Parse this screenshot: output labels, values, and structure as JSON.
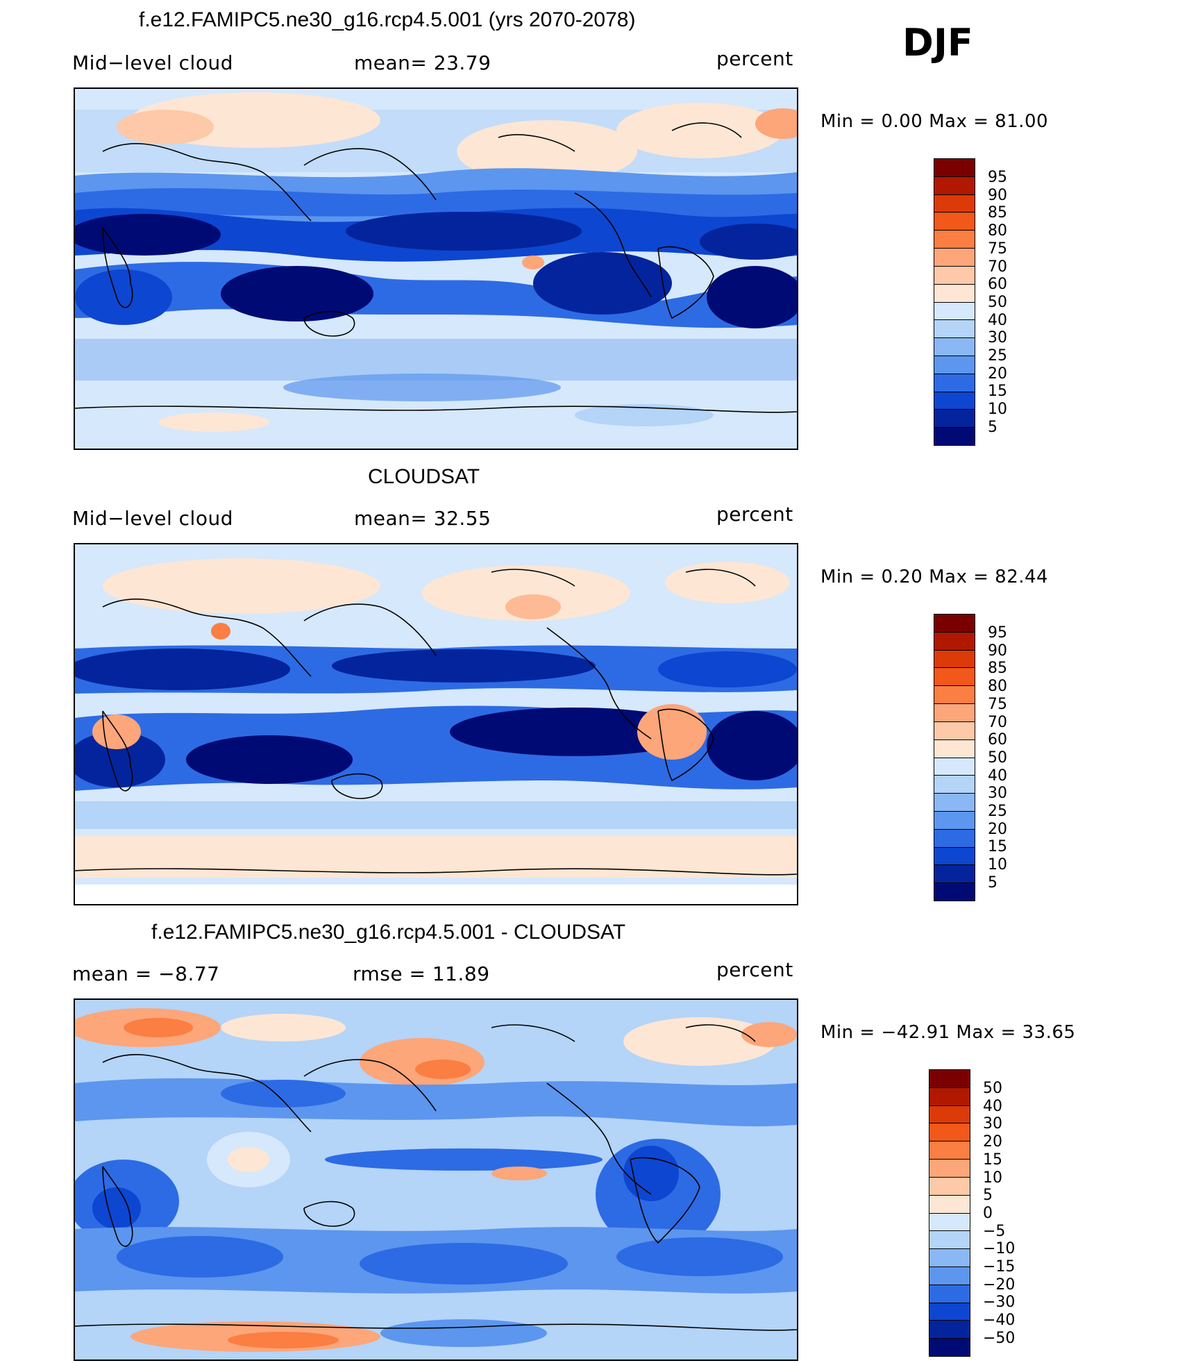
{
  "season": "DJF",
  "panels": [
    {
      "title": "f.e12.FAMIPC5.ne30_g16.rcp4.5.001 (yrs 2070-2078)",
      "left_label": "Mid−level cloud",
      "center_label": "mean=   23.79",
      "right_label": "percent",
      "minmax": "Min  =     0.00  Max  =    81.00",
      "colorbar_labels": [
        "95",
        "90",
        "85",
        "80",
        "75",
        "70",
        "60",
        "50",
        "40",
        "30",
        "25",
        "20",
        "15",
        "10",
        "5"
      ]
    },
    {
      "title": "CLOUDSAT",
      "left_label": "Mid−level cloud",
      "center_label": "mean=   32.55",
      "right_label": "percent",
      "minmax": "Min  =     0.20  Max  =    82.44",
      "colorbar_labels": [
        "95",
        "90",
        "85",
        "80",
        "75",
        "70",
        "60",
        "50",
        "40",
        "30",
        "25",
        "20",
        "15",
        "10",
        "5"
      ]
    },
    {
      "title": "f.e12.FAMIPC5.ne30_g16.rcp4.5.001 - CLOUDSAT",
      "left_label": "mean  =    −8.77",
      "center_label": "rmse  =    11.89",
      "right_label": "percent",
      "minmax": "Min  =  −42.91  Max  =    33.65",
      "colorbar_labels": [
        "50",
        "40",
        "30",
        "20",
        "15",
        "10",
        "5",
        "0",
        "−5",
        "−10",
        "−15",
        "−20",
        "−30",
        "−40",
        "−50"
      ]
    }
  ],
  "colors": {
    "abs_scale": [
      "#7a0000",
      "#b01800",
      "#dc3a08",
      "#f2581a",
      "#fb7e42",
      "#fca67a",
      "#fdc9a8",
      "#fde6d4",
      "#d6e8fb",
      "#b4d4f8",
      "#8ab8f4",
      "#5c96ee",
      "#2d6be4",
      "#0d46d0",
      "#03249c",
      "#000a74"
    ],
    "diff_scale": [
      "#7a0000",
      "#b01800",
      "#dc3a08",
      "#f2581a",
      "#fb7e42",
      "#fca67a",
      "#fdc9a8",
      "#fde6d4",
      "#d6e8fb",
      "#b4d4f8",
      "#8ab8f4",
      "#5c96ee",
      "#2d6be4",
      "#0d46d0",
      "#03249c",
      "#000a74"
    ]
  }
}
